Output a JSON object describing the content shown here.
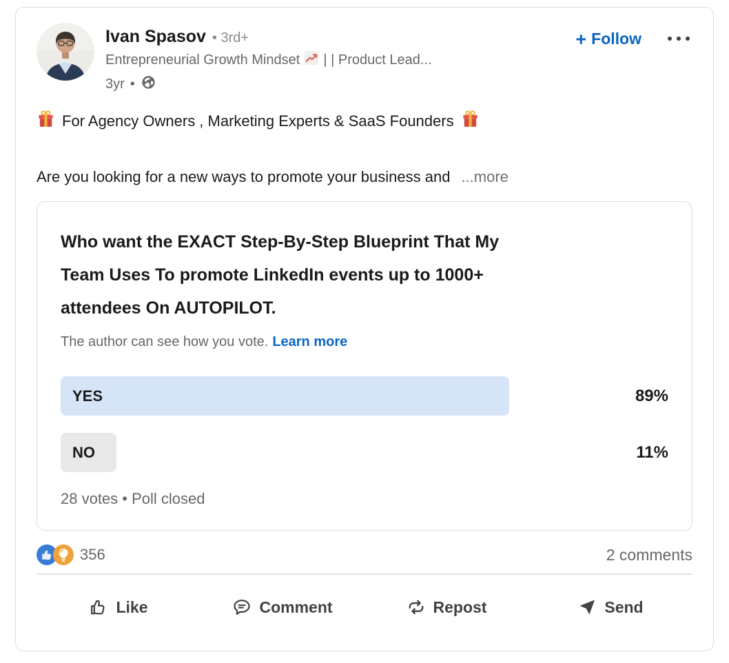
{
  "author": {
    "name": "Ivan Spasov",
    "degree": "• 3rd+",
    "headline_before_icon": "Entrepreneurial Growth Mindset",
    "headline_after_icon": "| | Product Lead...",
    "time": "3yr",
    "time_separator": "•"
  },
  "header_actions": {
    "follow_plus": "+",
    "follow_label": "Follow"
  },
  "post": {
    "line1": "For Agency Owners , Marketing Experts & SaaS Founders",
    "line2": "Are you looking for a new ways to promote your business and",
    "see_more": "...more"
  },
  "poll": {
    "question_lines": [
      "Who want the EXACT Step-By-Step Blueprint That My",
      "Team Uses To promote LinkedIn events up to 1000+",
      "attendees On AUTOPILOT."
    ],
    "visibility_note": "The author can see how you vote.",
    "learn_more": "Learn more",
    "options": [
      {
        "label": "YES",
        "percent": 89,
        "percent_label": "89%"
      },
      {
        "label": "NO",
        "percent": 11,
        "percent_label": "11%"
      }
    ],
    "footer": "28 votes • Poll closed"
  },
  "social": {
    "reactions_count": "356",
    "comments": "2 comments"
  },
  "actions": {
    "like": "Like",
    "comment": "Comment",
    "repost": "Repost",
    "send": "Send"
  },
  "icons": {
    "reactions": [
      "thumbs-up-like",
      "lightbulb-insightful"
    ],
    "post_emoji": "gift",
    "headline_emoji": "chart-increasing",
    "visibility": "globe",
    "overflow": "ellipsis"
  },
  "colors": {
    "accent_blue": "#0a66c2",
    "yes_bar": "#d6e4f7",
    "no_bar": "#e9e9e9",
    "like_reaction_blue": "#3a7cd5",
    "insightful_reaction_orange": "#f0a33c",
    "text_primary": "#191919",
    "text_secondary": "#666666"
  }
}
